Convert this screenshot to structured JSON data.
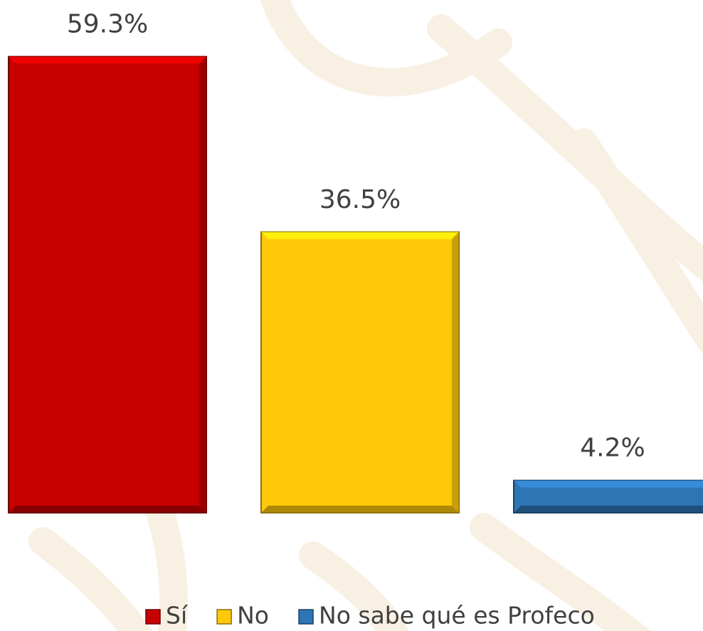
{
  "chart_data": {
    "type": "bar",
    "series": [
      {
        "name": "Sí",
        "color": "#c80000",
        "values": [
          59.3
        ],
        "value_labels": [
          "59.3%"
        ]
      },
      {
        "name": "No",
        "color": "#ffc90a",
        "values": [
          36.5
        ],
        "value_labels": [
          "36.5%"
        ]
      },
      {
        "name": "No sabe qué es Profeco",
        "color": "#2e75b6",
        "values": [
          4.2
        ],
        "value_labels": [
          "4.2%"
        ]
      }
    ],
    "ylim": [
      0,
      60
    ],
    "grid": false,
    "legend": "bottom"
  }
}
